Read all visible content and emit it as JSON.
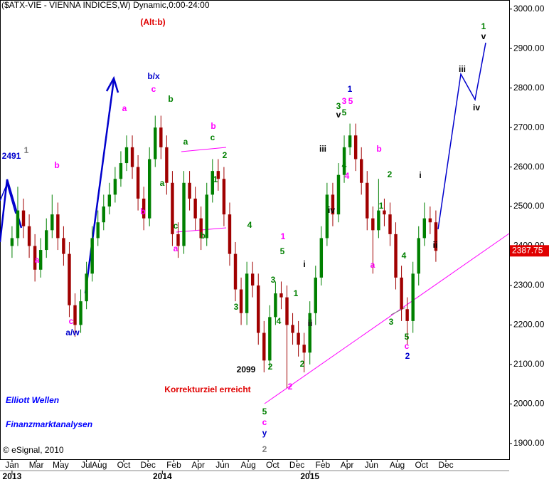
{
  "chart_data": {
    "type": "candlestick",
    "title": "($ATX-VIE - VIENNA INDICES,W) Dynamic,0:00-24:00",
    "x": [
      0,
      2,
      4,
      6,
      8,
      10,
      12,
      14,
      16,
      18,
      20,
      22,
      24,
      26,
      28,
      30,
      32,
      34,
      36,
      38,
      40,
      42,
      44,
      46,
      48,
      50,
      52,
      54,
      56,
      58,
      60,
      62,
      64,
      66,
      68,
      70,
      72,
      74,
      76,
      78,
      80,
      82,
      84,
      86,
      88,
      90,
      92,
      94,
      96,
      98,
      100,
      102,
      104,
      106,
      108,
      110,
      112,
      114,
      116,
      118,
      120,
      122,
      124,
      126,
      128,
      130,
      132,
      134,
      136,
      138,
      140,
      142,
      144,
      146,
      148
    ],
    "open": [
      2400,
      2420,
      2490,
      2450,
      2400,
      2340,
      2390,
      2440,
      2480,
      2420,
      2380,
      2250,
      2200,
      2260,
      2330,
      2420,
      2460,
      2500,
      2530,
      2570,
      2610,
      2650,
      2600,
      2520,
      2470,
      2620,
      2700,
      2650,
      2560,
      2430,
      2400,
      2560,
      2520,
      2470,
      2420,
      2530,
      2590,
      2570,
      2480,
      2380,
      2290,
      2230,
      2330,
      2300,
      2180,
      2110,
      2220,
      2280,
      2270,
      2200,
      2180,
      2150,
      2130,
      2230,
      2320,
      2420,
      2530,
      2480,
      2580,
      2650,
      2680,
      2620,
      2560,
      2470,
      2440,
      2490,
      2480,
      2430,
      2320,
      2240,
      2210,
      2330,
      2420,
      2470,
      2460
    ],
    "high": [
      2450,
      2550,
      2520,
      2480,
      2430,
      2420,
      2470,
      2530,
      2510,
      2450,
      2410,
      2280,
      2290,
      2360,
      2450,
      2490,
      2530,
      2560,
      2600,
      2640,
      2680,
      2680,
      2630,
      2550,
      2650,
      2730,
      2730,
      2680,
      2590,
      2460,
      2590,
      2590,
      2550,
      2500,
      2560,
      2620,
      2620,
      2600,
      2510,
      2410,
      2320,
      2360,
      2360,
      2330,
      2210,
      2250,
      2310,
      2310,
      2300,
      2230,
      2210,
      2180,
      2260,
      2350,
      2450,
      2560,
      2560,
      2610,
      2680,
      2710,
      2710,
      2650,
      2590,
      2500,
      2570,
      2520,
      2510,
      2460,
      2350,
      2270,
      2360,
      2450,
      2510,
      2500,
      2490
    ],
    "low": [
      2370,
      2400,
      2420,
      2370,
      2310,
      2320,
      2370,
      2420,
      2390,
      2350,
      2220,
      2170,
      2180,
      2240,
      2310,
      2400,
      2440,
      2480,
      2510,
      2550,
      2590,
      2570,
      2490,
      2440,
      2450,
      2600,
      2620,
      2530,
      2400,
      2370,
      2380,
      2490,
      2440,
      2390,
      2400,
      2510,
      2540,
      2450,
      2350,
      2260,
      2200,
      2200,
      2270,
      2150,
      2080,
      2090,
      2200,
      2240,
      2040,
      2150,
      2120,
      2080,
      2100,
      2200,
      2300,
      2400,
      2450,
      2460,
      2560,
      2630,
      2590,
      2530,
      2440,
      2330,
      2420,
      2450,
      2400,
      2290,
      2210,
      2150,
      2180,
      2300,
      2400,
      2430,
      2360
    ],
    "close": [
      2420,
      2490,
      2450,
      2400,
      2340,
      2390,
      2440,
      2480,
      2420,
      2380,
      2250,
      2200,
      2260,
      2330,
      2420,
      2460,
      2500,
      2530,
      2570,
      2610,
      2650,
      2600,
      2520,
      2470,
      2620,
      2700,
      2650,
      2560,
      2430,
      2400,
      2560,
      2520,
      2470,
      2420,
      2530,
      2590,
      2570,
      2480,
      2380,
      2290,
      2230,
      2330,
      2300,
      2180,
      2110,
      2220,
      2280,
      2270,
      2200,
      2180,
      2150,
      2130,
      2230,
      2320,
      2420,
      2530,
      2480,
      2580,
      2650,
      2680,
      2620,
      2560,
      2470,
      2440,
      2490,
      2480,
      2430,
      2320,
      2240,
      2210,
      2330,
      2420,
      2470,
      2460,
      2387.75
    ],
    "up_color": "#008000",
    "down_color": "#a00000",
    "xlim": [
      -4.2,
      173.6
    ],
    "ylim": [
      1860,
      3023
    ],
    "yticks": [
      {
        "value": 1900,
        "label": "1900.00"
      },
      {
        "value": 2000,
        "label": "2000.00"
      },
      {
        "value": 2100,
        "label": "2100.00"
      },
      {
        "value": 2200,
        "label": "2200.00"
      },
      {
        "value": 2300,
        "label": "2300.00"
      },
      {
        "value": 2400,
        "label": "2400.00"
      },
      {
        "value": 2500,
        "label": "2500.00"
      },
      {
        "value": 2600,
        "label": "2600.00"
      },
      {
        "value": 2700,
        "label": "2700.00"
      },
      {
        "value": 2800,
        "label": "2800.00"
      },
      {
        "value": 2900,
        "label": "2900.00"
      },
      {
        "value": 3000,
        "label": "3000.00"
      }
    ],
    "xticks": [
      {
        "value": 0,
        "label": "Jan"
      },
      {
        "value": 8.5,
        "label": "Mar"
      },
      {
        "value": 17,
        "label": "May"
      },
      {
        "value": 26,
        "label": "Jul"
      },
      {
        "value": 30.5,
        "label": "Aug"
      },
      {
        "value": 39,
        "label": "Oct"
      },
      {
        "value": 47.5,
        "label": "Dec"
      },
      {
        "value": 56.5,
        "label": "Feb"
      },
      {
        "value": 65,
        "label": "Apr"
      },
      {
        "value": 73.5,
        "label": "Jun"
      },
      {
        "value": 82.5,
        "label": "Aug"
      },
      {
        "value": 91,
        "label": "Oct"
      },
      {
        "value": 99.5,
        "label": "Dec"
      },
      {
        "value": 108.5,
        "label": "Feb"
      },
      {
        "value": 117,
        "label": "Apr"
      },
      {
        "value": 125.5,
        "label": "Jun"
      },
      {
        "value": 134.5,
        "label": "Aug"
      },
      {
        "value": 143,
        "label": "Oct"
      },
      {
        "value": 151.5,
        "label": "Dec"
      }
    ],
    "year_ticks": [
      {
        "value": 0,
        "label": "2013"
      },
      {
        "value": 52.5,
        "label": "2014"
      },
      {
        "value": 104,
        "label": "2015"
      }
    ],
    "last_price_color": "#e00000",
    "annotations": [
      {
        "text": "(Alt:b)",
        "color": "#e00000"
      },
      {
        "text": "2491",
        "color": "#0000cc"
      },
      {
        "text": "1",
        "color": "#808080"
      },
      {
        "text": "a",
        "color": "#ff00ff"
      },
      {
        "text": "b",
        "color": "#ff00ff"
      },
      {
        "text": "c",
        "color": "#ff00ff"
      },
      {
        "text": "a/w",
        "color": "#0000cc"
      },
      {
        "text": "b/x",
        "color": "#0000cc"
      },
      {
        "text": "c",
        "color": "#ff00ff"
      },
      {
        "text": "b",
        "color": "#008000"
      },
      {
        "text": "a",
        "color": "#ff00ff"
      },
      {
        "text": "b",
        "color": "#ff00ff"
      },
      {
        "text": "a",
        "color": "#008000"
      },
      {
        "text": "a",
        "color": "#008000"
      },
      {
        "text": "c",
        "color": "#008000"
      },
      {
        "text": "b",
        "color": "#ff00ff"
      },
      {
        "text": "2",
        "color": "#008000"
      },
      {
        "text": "1",
        "color": "#008000"
      },
      {
        "text": "c",
        "color": "#008000"
      },
      {
        "text": "a",
        "color": "#ff00ff"
      },
      {
        "text": "b",
        "color": "#008000"
      },
      {
        "text": "4",
        "color": "#008000"
      },
      {
        "text": "3",
        "color": "#008000"
      },
      {
        "text": "1",
        "color": "#ff00ff"
      },
      {
        "text": "5",
        "color": "#008000"
      },
      {
        "text": "3",
        "color": "#008000"
      },
      {
        "text": "4",
        "color": "#008000"
      },
      {
        "text": "1",
        "color": "#008000"
      },
      {
        "text": "i",
        "color": "#000000"
      },
      {
        "text": "ii",
        "color": "#000000"
      },
      {
        "text": "2099",
        "color": "#000000"
      },
      {
        "text": "2",
        "color": "#008000"
      },
      {
        "text": "2",
        "color": "#008000"
      },
      {
        "text": "2",
        "color": "#ff00ff"
      },
      {
        "text": "Korrekturziel erreicht",
        "color": "#e00000"
      },
      {
        "text": "5",
        "color": "#008000"
      },
      {
        "text": "c",
        "color": "#ff00ff"
      },
      {
        "text": "y",
        "color": "#0000cc"
      },
      {
        "text": "2",
        "color": "#808080"
      },
      {
        "text": "iii",
        "color": "#000000"
      },
      {
        "text": "iv",
        "color": "#000000"
      },
      {
        "text": "4",
        "color": "#008000"
      },
      {
        "text": "4",
        "color": "#ff00ff"
      },
      {
        "text": "3",
        "color": "#008000"
      },
      {
        "text": "v",
        "color": "#000000"
      },
      {
        "text": "5",
        "color": "#008000"
      },
      {
        "text": "3",
        "color": "#ff00ff"
      },
      {
        "text": "5",
        "color": "#ff00ff"
      },
      {
        "text": "1",
        "color": "#0000cc"
      },
      {
        "text": "b",
        "color": "#ff00ff"
      },
      {
        "text": "2",
        "color": "#008000"
      },
      {
        "text": "1",
        "color": "#008000"
      },
      {
        "text": "a",
        "color": "#ff00ff"
      },
      {
        "text": "3",
        "color": "#008000"
      },
      {
        "text": "4",
        "color": "#008000"
      },
      {
        "text": "5",
        "color": "#008000"
      },
      {
        "text": "c",
        "color": "#ff00ff"
      },
      {
        "text": "2",
        "color": "#0000cc"
      },
      {
        "text": "i",
        "color": "#000000"
      },
      {
        "text": "ii",
        "color": "#000000"
      },
      {
        "text": "iii",
        "color": "#000000"
      },
      {
        "text": "iv",
        "color": "#000000"
      },
      {
        "text": "1",
        "color": "#008000"
      },
      {
        "text": "v",
        "color": "#000000"
      },
      {
        "text": "Elliott Wellen",
        "color": "#0000ff"
      },
      {
        "text": "Finanzmarktanalysen",
        "color": "#0000ff"
      },
      {
        "text": "© eSignal, 2010",
        "color": "#000000"
      }
    ]
  }
}
